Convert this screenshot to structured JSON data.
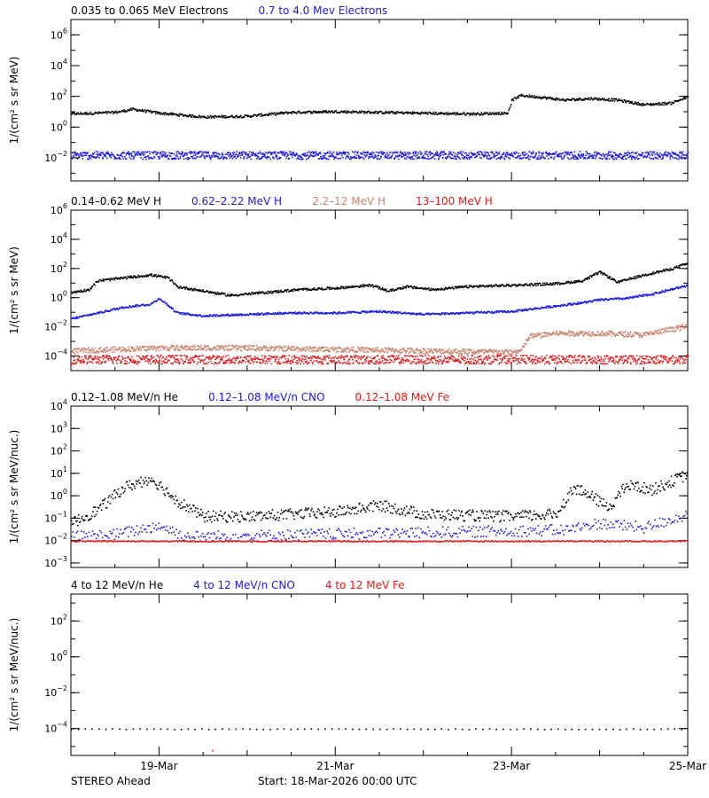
{
  "colors": {
    "black": "#000000",
    "blue": "#1a1adf",
    "tan": "#c8826c",
    "red": "#e01b1b"
  },
  "footer": {
    "spacecraft": "STEREO Ahead",
    "start": "Start: 18-Mar-2026 00:00 UTC"
  },
  "x_axis": {
    "ticks": [
      "19-Mar",
      "21-Mar",
      "23-Mar",
      "25-Mar"
    ],
    "tick_days": [
      1,
      3,
      5,
      7
    ],
    "range_days": [
      0,
      7
    ]
  },
  "chart_data": [
    {
      "id": "electrons",
      "type": "scatter",
      "y_scale": "log",
      "ylim_exp": [
        -3.5,
        7
      ],
      "ytick_exps": [
        -2,
        0,
        2,
        4,
        6
      ],
      "ylabel": "1/(cm² s sr MeV)",
      "legend": [
        {
          "text": "0.035 to 0.065 MeV Electrons",
          "color": "black"
        },
        {
          "text": "0.7 to 4.0 Mev Electrons",
          "color": "blue"
        }
      ],
      "series": [
        {
          "name": "0.035 to 0.065 MeV Electrons",
          "color": "black",
          "profile": [
            [
              0,
              0.9
            ],
            [
              0.5,
              1.0
            ],
            [
              0.7,
              1.2
            ],
            [
              1.0,
              0.95
            ],
            [
              1.5,
              0.7
            ],
            [
              2.0,
              0.75
            ],
            [
              2.5,
              1.0
            ],
            [
              3.0,
              1.05
            ],
            [
              3.5,
              1.0
            ],
            [
              4.0,
              0.95
            ],
            [
              4.5,
              0.9
            ],
            [
              4.95,
              0.95
            ],
            [
              5.0,
              1.8
            ],
            [
              5.1,
              2.1
            ],
            [
              5.3,
              2.0
            ],
            [
              5.6,
              1.8
            ],
            [
              5.9,
              1.9
            ],
            [
              6.2,
              1.8
            ],
            [
              6.5,
              1.5
            ],
            [
              6.8,
              1.6
            ],
            [
              7.0,
              2.0
            ]
          ],
          "scatter": 0.08,
          "dots": 900
        },
        {
          "name": "0.7 to 4.0 Mev Electrons",
          "color": "blue",
          "profile": [
            [
              0,
              -1.8
            ],
            [
              7,
              -1.8
            ]
          ],
          "scatter": 0.25,
          "dots": 1400
        }
      ]
    },
    {
      "id": "protons",
      "type": "scatter",
      "y_scale": "log",
      "ylim_exp": [
        -5,
        6
      ],
      "ytick_exps": [
        -4,
        -2,
        0,
        2,
        4,
        6
      ],
      "ylabel": "1/(cm² s sr MeV)",
      "legend": [
        {
          "text": "0.14–0.62 MeV H",
          "color": "black"
        },
        {
          "text": "0.62–2.22 MeV H",
          "color": "blue"
        },
        {
          "text": "2.2–12 MeV H",
          "color": "tan"
        },
        {
          "text": "13–100 MeV H",
          "color": "red"
        }
      ],
      "series": [
        {
          "name": "0.14–0.62 MeV H",
          "color": "black",
          "profile": [
            [
              0,
              0.4
            ],
            [
              0.2,
              0.6
            ],
            [
              0.3,
              1.2
            ],
            [
              0.6,
              1.4
            ],
            [
              0.9,
              1.6
            ],
            [
              1.1,
              1.4
            ],
            [
              1.2,
              0.8
            ],
            [
              1.5,
              0.5
            ],
            [
              1.8,
              0.2
            ],
            [
              2.2,
              0.4
            ],
            [
              2.6,
              0.6
            ],
            [
              3.0,
              0.7
            ],
            [
              3.4,
              0.9
            ],
            [
              3.6,
              0.5
            ],
            [
              3.8,
              0.8
            ],
            [
              4.1,
              0.6
            ],
            [
              4.5,
              0.8
            ],
            [
              5.0,
              0.9
            ],
            [
              5.5,
              1.0
            ],
            [
              5.8,
              1.2
            ],
            [
              6.0,
              1.8
            ],
            [
              6.2,
              1.1
            ],
            [
              6.5,
              1.6
            ],
            [
              6.8,
              2.0
            ],
            [
              7.0,
              2.4
            ]
          ],
          "scatter": 0.08,
          "dots": 900
        },
        {
          "name": "0.62–2.22 MeV H",
          "color": "blue",
          "profile": [
            [
              0,
              -1.4
            ],
            [
              0.3,
              -1.0
            ],
            [
              0.6,
              -0.6
            ],
            [
              0.9,
              -0.4
            ],
            [
              1.0,
              0.0
            ],
            [
              1.2,
              -1.0
            ],
            [
              1.5,
              -1.2
            ],
            [
              2.0,
              -1.1
            ],
            [
              2.5,
              -1.0
            ],
            [
              3.0,
              -1.0
            ],
            [
              3.5,
              -0.9
            ],
            [
              4.0,
              -1.1
            ],
            [
              4.5,
              -1.0
            ],
            [
              5.0,
              -0.9
            ],
            [
              5.4,
              -0.6
            ],
            [
              5.8,
              -0.3
            ],
            [
              6.0,
              -0.1
            ],
            [
              6.3,
              0.0
            ],
            [
              6.6,
              0.3
            ],
            [
              7.0,
              0.9
            ]
          ],
          "scatter": 0.07,
          "dots": 900
        },
        {
          "name": "2.2–12 MeV H",
          "color": "tan",
          "profile": [
            [
              0,
              -3.6
            ],
            [
              1.0,
              -3.4
            ],
            [
              2.0,
              -3.4
            ],
            [
              3.0,
              -3.5
            ],
            [
              4.0,
              -3.6
            ],
            [
              5.0,
              -3.7
            ],
            [
              5.1,
              -3.6
            ],
            [
              5.2,
              -2.6
            ],
            [
              5.5,
              -2.4
            ],
            [
              6.0,
              -2.4
            ],
            [
              6.5,
              -2.5
            ],
            [
              7.0,
              -1.9
            ]
          ],
          "scatter": 0.18,
          "dots": 1100
        },
        {
          "name": "13–100 MeV H",
          "color": "red",
          "profile": [
            [
              0,
              -4.2
            ],
            [
              7,
              -4.2
            ]
          ],
          "scatter": 0.3,
          "dots": 1300
        }
      ]
    },
    {
      "id": "heavy_low",
      "type": "scatter",
      "y_scale": "log",
      "ylim_exp": [
        -3.2,
        4
      ],
      "ytick_exps": [
        -3,
        -2,
        -1,
        0,
        1,
        2,
        3,
        4
      ],
      "ylabel": "1/(cm² s sr MeV/nuc.)",
      "legend": [
        {
          "text": "0.12–1.08 MeV/n He",
          "color": "black"
        },
        {
          "text": "0.12–1.08 MeV/n CNO",
          "color": "blue"
        },
        {
          "text": "0.12–1.08 MeV Fe",
          "color": "red"
        }
      ],
      "series": [
        {
          "name": "0.12–1.08 MeV/n He",
          "color": "black",
          "profile": [
            [
              0,
              -1.2
            ],
            [
              0.3,
              -0.6
            ],
            [
              0.6,
              0.4
            ],
            [
              0.9,
              0.8
            ],
            [
              1.0,
              0.5
            ],
            [
              1.2,
              -0.2
            ],
            [
              1.5,
              -0.9
            ],
            [
              2.0,
              -0.9
            ],
            [
              3.0,
              -0.7
            ],
            [
              3.5,
              -0.4
            ],
            [
              4.0,
              -0.8
            ],
            [
              5.0,
              -0.9
            ],
            [
              5.5,
              -0.8
            ],
            [
              5.7,
              0.4
            ],
            [
              5.9,
              0.0
            ],
            [
              6.1,
              -0.5
            ],
            [
              6.3,
              0.5
            ],
            [
              6.6,
              0.3
            ],
            [
              7.0,
              1.0
            ]
          ],
          "scatter": 0.25,
          "dots": 700
        },
        {
          "name": "0.12–1.08 MeV/n CNO",
          "color": "blue",
          "profile": [
            [
              0,
              -1.8
            ],
            [
              0.5,
              -1.7
            ],
            [
              1.0,
              -1.3
            ],
            [
              1.3,
              -1.8
            ],
            [
              5.6,
              -1.5
            ],
            [
              6.0,
              -1.2
            ],
            [
              6.5,
              -1.4
            ],
            [
              7.0,
              -0.8
            ]
          ],
          "scatter": 0.25,
          "dots": 500
        },
        {
          "name": "0.12–1.08 MeV Fe",
          "color": "red",
          "profile": [
            [
              0,
              -2.0
            ],
            [
              7,
              -2.0
            ]
          ],
          "scatter": 0.03,
          "dots": 600
        }
      ]
    },
    {
      "id": "heavy_high",
      "type": "scatter",
      "y_scale": "log",
      "ylim_exp": [
        -5.5,
        3.5
      ],
      "ytick_exps": [
        -4,
        -2,
        0,
        2
      ],
      "ylabel": "1/(cm² s sr MeV/nuc.)",
      "legend": [
        {
          "text": "4 to 12 MeV/n He",
          "color": "black"
        },
        {
          "text": "4 to 12 MeV/n CNO",
          "color": "blue"
        },
        {
          "text": "4 to 12 MeV Fe",
          "color": "red"
        }
      ],
      "series": [
        {
          "name": "4 to 12 MeV/n He",
          "color": "black",
          "profile": [
            [
              0,
              -4.0
            ],
            [
              7,
              -4.0
            ]
          ],
          "scatter": 0.02,
          "dots": 90
        },
        {
          "name": "4 to 12 MeV Fe",
          "color": "red",
          "profile": [
            [
              1.6,
              -5.2
            ],
            [
              1.6,
              -5.2
            ]
          ],
          "scatter": 0.0,
          "dots": 1
        }
      ]
    }
  ]
}
